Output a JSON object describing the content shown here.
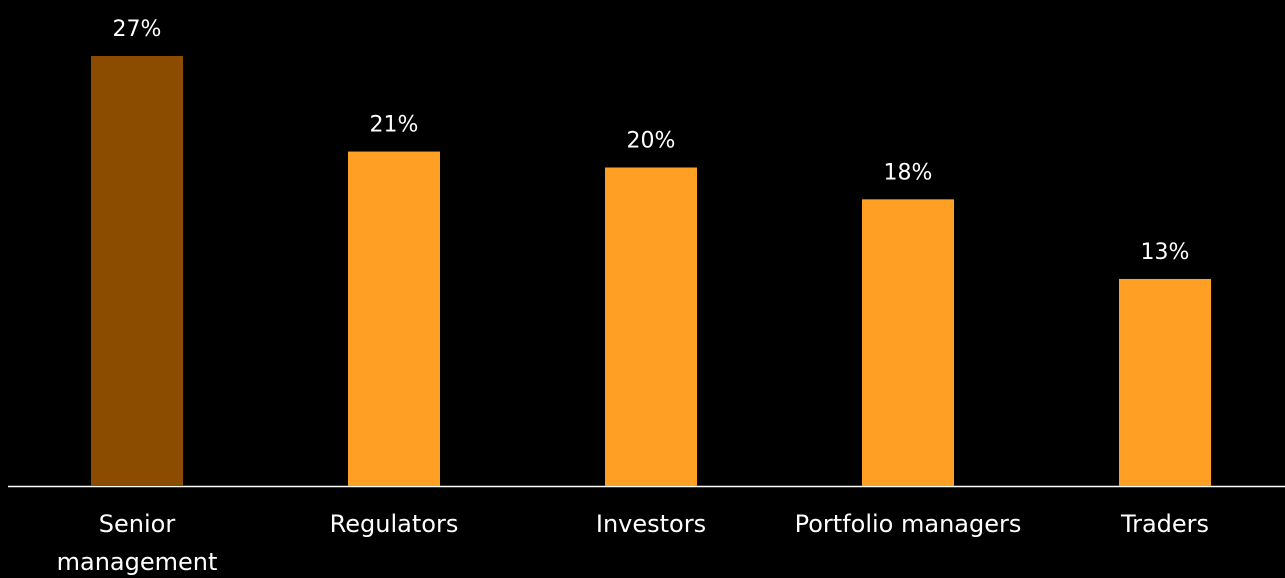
{
  "chart_data": {
    "type": "bar",
    "categories": [
      [
        "Senior",
        "management"
      ],
      "Regulators",
      "Investors",
      "Portfolio managers",
      "Traders"
    ],
    "values": [
      27,
      21,
      20,
      18,
      13
    ],
    "value_labels": [
      "27%",
      "21%",
      "20%",
      "18%",
      "13%"
    ],
    "colors": [
      "#8c4c00",
      "#ffa024",
      "#ffa024",
      "#ffa024",
      "#ffa024"
    ],
    "ylim": [
      0,
      27
    ]
  }
}
